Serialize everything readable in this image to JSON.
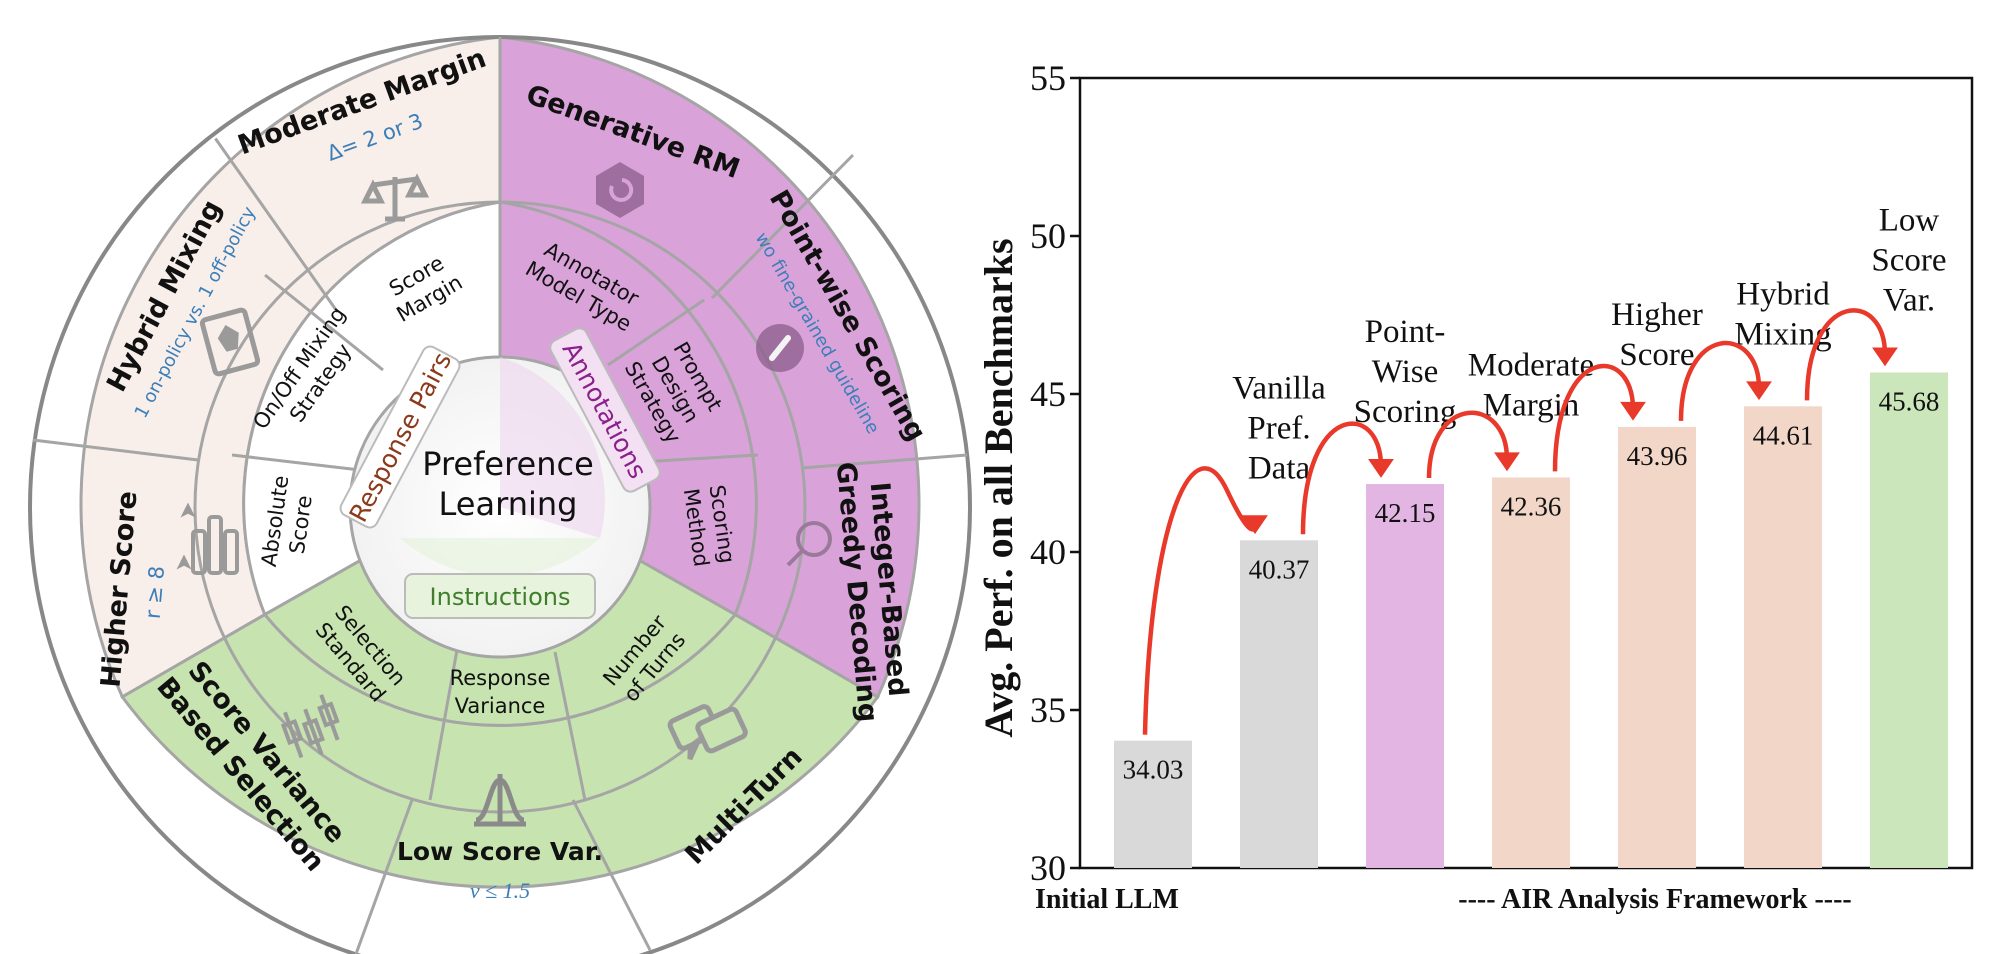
{
  "wheel": {
    "center": [
      "Preference",
      "Learning"
    ],
    "groups": {
      "response_pairs": "Response Pairs",
      "annotations": "Annotations",
      "instructions": "Instructions"
    },
    "middle": {
      "score_margin": [
        "Score",
        "Margin"
      ],
      "onoff": [
        "On/Off Mixing",
        "Strategy"
      ],
      "absolute": [
        "Absolute",
        "Score"
      ],
      "annotator": [
        "Annotator",
        "Model Type"
      ],
      "prompt": [
        "Prompt",
        "Design",
        "Strategy"
      ],
      "scoring": [
        "Scoring",
        "Method"
      ],
      "selection": [
        "Selection",
        "Standard"
      ],
      "resp_var": [
        "Response",
        "Variance"
      ],
      "num_turns": [
        "Number",
        "of Turns"
      ]
    },
    "outer": {
      "moderate_margin": "Moderate Margin",
      "moderate_margin_sub": "Δ= 2 or 3",
      "hybrid_mixing": "Hybrid Mixing",
      "hybrid_mixing_sub": "1 on-policy vs. 1 off-policy",
      "higher_score": "Higher Score",
      "higher_score_sub": "r ≥ 8",
      "generative_rm": "Generative RM",
      "pointwise": "Point-wise Scoring",
      "pointwise_sub": "wo fine-grained guideline",
      "integer": [
        "Integer-Based",
        "Greedy Decoding"
      ],
      "score_variance": [
        "Score Variance",
        "Based Selection"
      ],
      "low_score_var": "Low Score Var.",
      "low_score_var_sub": "v ≤ 1.5",
      "multi_turn": "Multi-Turn"
    },
    "colors": {
      "peach": "#F8EEEA",
      "purple": "#D9A3D9",
      "green": "#C6E3B0",
      "grey": "#9a9a9a"
    }
  },
  "chart_data": {
    "type": "bar",
    "title": "",
    "ylabel": "Avg. Perf. on all Benchmarks",
    "ylim": [
      30,
      55
    ],
    "yticks": [
      30,
      35,
      40,
      45,
      50,
      55
    ],
    "categories": [
      "Initial LLM",
      "Vanilla Pref. Data",
      "Point-Wise Scoring",
      "Moderate Margin",
      "Higher Score",
      "Hybrid Mixing",
      "Low Score Var."
    ],
    "category_labels": [
      [],
      [
        "Vanilla",
        "Pref.",
        "Data"
      ],
      [
        "Point-",
        "Wise",
        "Scoring"
      ],
      [
        "Moderate",
        "Margin"
      ],
      [
        "Higher",
        "Score"
      ],
      [
        "Hybrid",
        "Mixing"
      ],
      [
        "Low",
        "Score",
        "Var."
      ]
    ],
    "values": [
      34.03,
      40.37,
      42.15,
      42.36,
      43.96,
      44.61,
      45.68
    ],
    "value_labels": [
      "34.03",
      "40.37",
      "42.15",
      "42.36",
      "43.96",
      "44.61",
      "45.68"
    ],
    "bar_colors": [
      "#D9D9D9",
      "#D9D9D9",
      "#E2B5E2",
      "#F2D7C8",
      "#F2D7C8",
      "#F2D7C8",
      "#CCE6BC"
    ],
    "xlabel_left": "Initial LLM",
    "xlabel_right": "---- AIR Analysis Framework ----",
    "arrow_color": "#E8392B"
  }
}
